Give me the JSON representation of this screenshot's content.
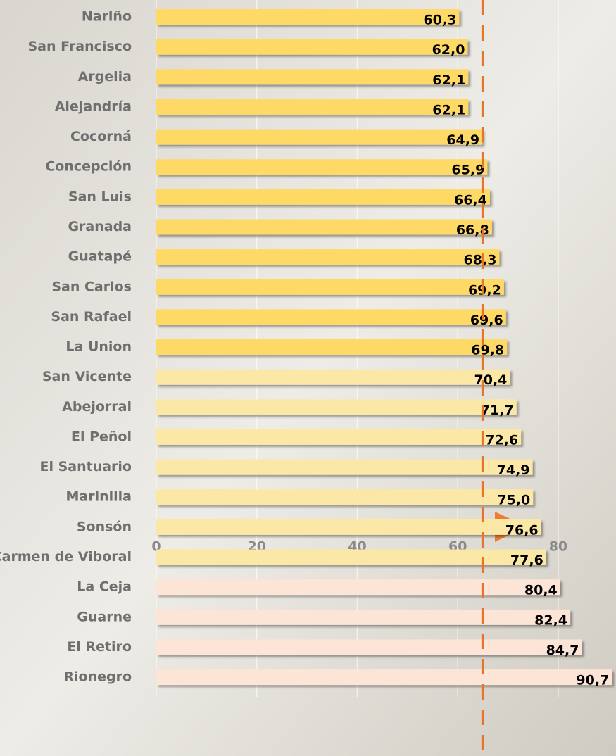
{
  "chart_data": {
    "type": "barh",
    "categories": [
      "Nariño",
      "San Francisco",
      "Argelia",
      "Alejandría",
      "Cocorná",
      "Concepción",
      "San Luis",
      "Granada",
      "Guatapé",
      "San Carlos",
      "San Rafael",
      "La Union",
      "San Vicente",
      "Abejorral",
      "El Peñol",
      "El Santuario",
      "Marinilla",
      "Sonsón",
      "El Carmen de Viboral",
      "La Ceja",
      "Guarne",
      "El Retiro",
      "Rionegro"
    ],
    "values": [
      60.3,
      62.0,
      62.1,
      62.1,
      64.9,
      65.9,
      66.4,
      66.8,
      68.3,
      69.2,
      69.6,
      69.8,
      70.4,
      71.7,
      72.6,
      74.9,
      75.0,
      76.6,
      77.6,
      80.4,
      82.4,
      84.7,
      90.7
    ],
    "value_labels": [
      "60,3",
      "62,0",
      "62,1",
      "62,1",
      "64,9",
      "65,9",
      "66,4",
      "66,8",
      "68,3",
      "69,2",
      "69,6",
      "69,8",
      "70,4",
      "71,7",
      "72,6",
      "74,9",
      "75,0",
      "76,6",
      "77,6",
      "80,4",
      "82,4",
      "84,7",
      "90,7"
    ],
    "colors": [
      "#ffd966",
      "#ffd966",
      "#ffd966",
      "#ffd966",
      "#ffd966",
      "#ffd966",
      "#ffd966",
      "#ffd966",
      "#ffd966",
      "#ffd966",
      "#ffd966",
      "#ffd966",
      "#fbe8a6",
      "#fbe8a6",
      "#fbe8a6",
      "#fbe8a6",
      "#fbe8a6",
      "#fbe8a6",
      "#fbe8a6",
      "#fce4d6",
      "#fce4d6",
      "#fce4d6",
      "#fce4d6"
    ],
    "xlim": [
      0,
      91.5
    ],
    "xticks": [
      0,
      20,
      40,
      60,
      80
    ],
    "grid": true,
    "reference_line": {
      "value": 65,
      "color": "#e8742a"
    }
  }
}
